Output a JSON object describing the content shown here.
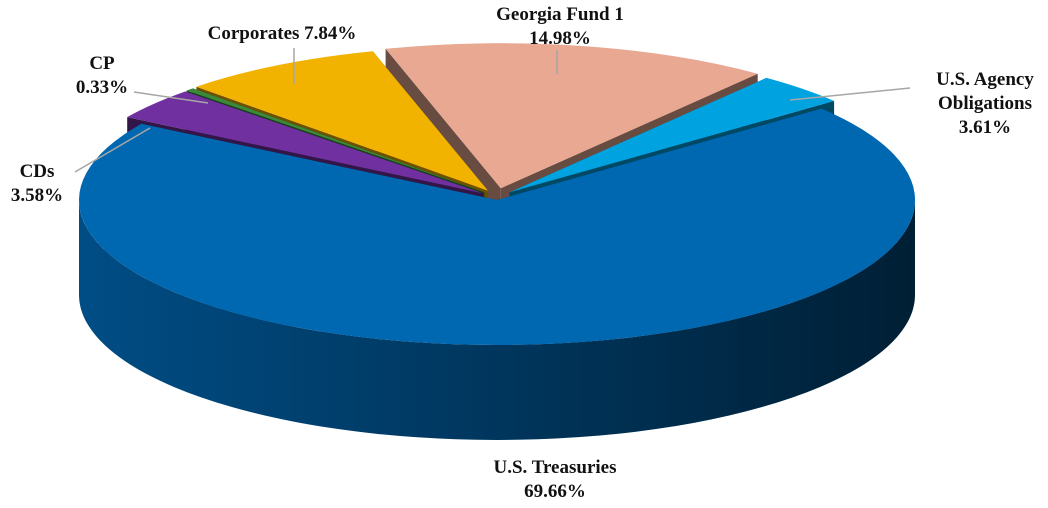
{
  "chart_data": {
    "type": "pie",
    "categories": [
      "Georgia Fund 1",
      "U.S. Agency Obligations",
      "U.S. Treasuries",
      "CDs",
      "CP",
      "Corporates"
    ],
    "values": [
      14.98,
      3.61,
      69.66,
      3.58,
      0.33,
      7.84
    ],
    "value_labels": [
      "14.98%",
      "3.61%",
      "69.66%",
      "3.58%",
      "0.33%",
      "7.84%"
    ],
    "colors": [
      "#e8a891",
      "#00a3e0",
      "#0067b1",
      "#7030a0",
      "#3a8a3a",
      "#f2b300"
    ]
  }
}
